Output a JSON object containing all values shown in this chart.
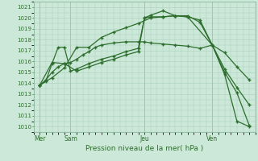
{
  "background_color": "#cce8d8",
  "grid_color": "#aacfbe",
  "line_color": "#2d6e2d",
  "title": "Pression niveau de la mer( hPa )",
  "ylim": [
    1009.5,
    1021.5
  ],
  "yticks": [
    1010,
    1011,
    1012,
    1013,
    1014,
    1015,
    1016,
    1017,
    1018,
    1019,
    1020,
    1021
  ],
  "xlim": [
    0,
    18
  ],
  "day_labels": [
    "Mer",
    "Sam",
    "Jeu",
    "Ven"
  ],
  "day_positions": [
    0.5,
    3.0,
    9.0,
    14.5
  ],
  "vline_positions": [
    0.5,
    3.0,
    9.0,
    14.5
  ],
  "series1_x": [
    0.5,
    1.0,
    1.5,
    2.0,
    2.5,
    3.0,
    3.5,
    4.0,
    4.5,
    5.0,
    5.5,
    6.5,
    7.5,
    8.5,
    9.0,
    9.5,
    10.5,
    11.5,
    12.5,
    13.5,
    14.5,
    15.5,
    16.5,
    17.5
  ],
  "series1_y": [
    1013.8,
    1014.3,
    1015.0,
    1015.5,
    1015.8,
    1015.9,
    1016.2,
    1016.6,
    1016.9,
    1017.3,
    1017.5,
    1017.7,
    1017.8,
    1017.8,
    1017.8,
    1017.7,
    1017.6,
    1017.5,
    1017.4,
    1017.2,
    1017.5,
    1016.8,
    1015.5,
    1014.3
  ],
  "series2_x": [
    0.5,
    1.0,
    1.5,
    2.0,
    2.5,
    3.0,
    3.5,
    4.5,
    5.5,
    6.5,
    7.5,
    8.5,
    9.0,
    9.5,
    10.5,
    11.5,
    12.5,
    13.5,
    14.5,
    15.5,
    16.5,
    17.5
  ],
  "series2_y": [
    1013.8,
    1014.2,
    1015.8,
    1017.3,
    1017.3,
    1015.1,
    1015.3,
    1015.8,
    1016.2,
    1016.5,
    1016.9,
    1017.2,
    1020.0,
    1020.1,
    1020.1,
    1020.2,
    1020.1,
    1019.8,
    1017.5,
    1015.0,
    1013.1,
    1010.1
  ],
  "series3_x": [
    0.5,
    1.5,
    2.5,
    3.5,
    4.5,
    5.5,
    6.5,
    7.5,
    8.5,
    9.5,
    10.5,
    11.5,
    12.5,
    13.5,
    14.5,
    15.5,
    16.5,
    17.5
  ],
  "series3_y": [
    1013.8,
    1014.5,
    1015.4,
    1017.3,
    1017.3,
    1018.2,
    1018.7,
    1019.1,
    1019.5,
    1020.0,
    1020.1,
    1020.2,
    1020.2,
    1019.6,
    1017.5,
    1015.3,
    1013.6,
    1012.0
  ],
  "series4_x": [
    0.5,
    1.5,
    2.5,
    3.5,
    4.5,
    5.5,
    6.5,
    7.5,
    8.5,
    9.0,
    9.5,
    10.5,
    11.5,
    12.5,
    14.5,
    15.5,
    16.5,
    17.5
  ],
  "series4_y": [
    1013.8,
    1015.9,
    1015.8,
    1015.1,
    1015.5,
    1015.9,
    1016.2,
    1016.6,
    1016.9,
    1020.0,
    1020.25,
    1020.65,
    1020.2,
    1020.1,
    1017.5,
    1014.8,
    1010.5,
    1010.0
  ]
}
